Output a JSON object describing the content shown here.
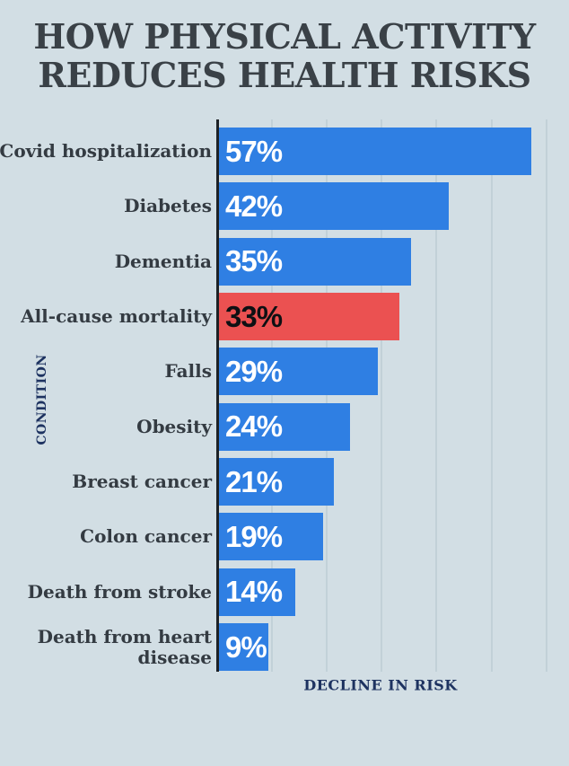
{
  "title": {
    "line1": "HOW PHYSICAL ACTIVITY",
    "line2": "REDUCES HEALTH RISKS"
  },
  "axes": {
    "y_title": "CONDITION",
    "x_title": "DECLINE IN RISK"
  },
  "colors": {
    "background": "#d2dee4",
    "bar": "#2f7fe3",
    "bar_highlight": "#eb5151",
    "axis_line": "#1d2125",
    "gridline": "#c2d1d8",
    "title_text": "#3a4147",
    "label_text": "#343b42",
    "value_text": "#ffffff",
    "value_text_highlight": "#0e1013",
    "axis_title_text": "#1d3260"
  },
  "chart_data": {
    "type": "bar",
    "orientation": "horizontal",
    "title": "HOW PHYSICAL ACTIVITY REDUCES HEALTH RISKS",
    "xlabel": "DECLINE IN RISK",
    "ylabel": "CONDITION",
    "unit": "%",
    "xlim": [
      0,
      64
    ],
    "grid": {
      "vertical_gridlines_pct": [
        10,
        20,
        30,
        40,
        50,
        60
      ],
      "tick_labels_shown": false
    },
    "legend": "none",
    "categories": [
      "Covid hospitalization",
      "Diabetes",
      "Dementia",
      "All-cause mortality",
      "Falls",
      "Obesity",
      "Breast cancer",
      "Colon cancer",
      "Death from stroke",
      "Death from heart disease"
    ],
    "values": [
      57,
      42,
      35,
      33,
      29,
      24,
      21,
      19,
      14,
      9
    ],
    "highlight_category": "All-cause mortality",
    "rows": [
      {
        "label_lines": [
          "Covid hospitalization"
        ],
        "value": 57,
        "value_label": "57%",
        "highlight": false
      },
      {
        "label_lines": [
          "Diabetes"
        ],
        "value": 42,
        "value_label": "42%",
        "highlight": false
      },
      {
        "label_lines": [
          "Dementia"
        ],
        "value": 35,
        "value_label": "35%",
        "highlight": false
      },
      {
        "label_lines": [
          "All-cause mortality"
        ],
        "value": 33,
        "value_label": "33%",
        "highlight": true
      },
      {
        "label_lines": [
          "Falls"
        ],
        "value": 29,
        "value_label": "29%",
        "highlight": false
      },
      {
        "label_lines": [
          "Obesity"
        ],
        "value": 24,
        "value_label": "24%",
        "highlight": false
      },
      {
        "label_lines": [
          "Breast cancer"
        ],
        "value": 21,
        "value_label": "21%",
        "highlight": false
      },
      {
        "label_lines": [
          "Colon cancer"
        ],
        "value": 19,
        "value_label": "19%",
        "highlight": false
      },
      {
        "label_lines": [
          "Death from stroke"
        ],
        "value": 14,
        "value_label": "14%",
        "highlight": false
      },
      {
        "label_lines": [
          "Death from heart",
          "disease"
        ],
        "value": 9,
        "value_label": "9%",
        "highlight": false
      }
    ]
  }
}
